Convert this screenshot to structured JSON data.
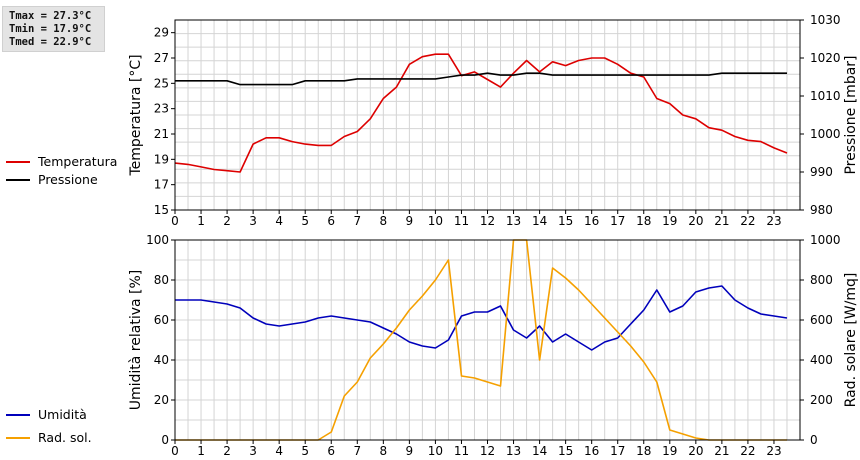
{
  "stats": {
    "tmax": "Tmax = 27.3°C",
    "tmin": "Tmin = 17.9°C",
    "tmed": "Tmed = 22.9°C"
  },
  "chart_data": [
    {
      "type": "line",
      "title": "",
      "xlabel": "",
      "ylabel": "Temperatura [°C]",
      "y2label": "Pressione [mbar]",
      "xlim": [
        0,
        24
      ],
      "ylim": [
        15,
        30
      ],
      "y2lim": [
        980,
        1030
      ],
      "x_ticks": [
        0,
        1,
        2,
        3,
        4,
        5,
        6,
        7,
        8,
        9,
        10,
        11,
        12,
        13,
        14,
        15,
        16,
        17,
        18,
        19,
        20,
        21,
        22,
        23
      ],
      "y_ticks": [
        15,
        17,
        19,
        21,
        23,
        25,
        27,
        29
      ],
      "y2_ticks": [
        980,
        990,
        1000,
        1010,
        1020,
        1030
      ],
      "grid": true,
      "legend": "left",
      "series": [
        {
          "name": "Temperatura",
          "axis": "left",
          "color": "#dd0000",
          "x": [
            0,
            0.5,
            1,
            1.5,
            2,
            2.5,
            3,
            3.5,
            4,
            4.5,
            5,
            5.5,
            6,
            6.5,
            7,
            7.5,
            8,
            8.5,
            9,
            9.5,
            10,
            10.5,
            11,
            11.5,
            12,
            12.5,
            13,
            13.5,
            14,
            14.5,
            15,
            15.5,
            16,
            16.5,
            17,
            17.5,
            18,
            18.5,
            19,
            19.5,
            20,
            20.5,
            21,
            21.5,
            22,
            22.5,
            23,
            23.5
          ],
          "y": [
            18.7,
            18.6,
            18.4,
            18.2,
            18.1,
            18.0,
            20.2,
            20.7,
            20.7,
            20.4,
            20.2,
            20.1,
            20.1,
            20.8,
            21.2,
            22.2,
            23.8,
            24.7,
            26.5,
            27.1,
            27.3,
            27.3,
            25.6,
            25.9,
            25.3,
            24.7,
            25.8,
            26.8,
            25.9,
            26.7,
            26.4,
            26.8,
            27.0,
            27.0,
            26.5,
            25.8,
            25.5,
            23.8,
            23.4,
            22.5,
            22.2,
            21.5,
            21.3,
            20.8,
            20.5,
            20.4,
            19.9,
            19.5
          ]
        },
        {
          "name": "Pressione",
          "axis": "right",
          "color": "#000000",
          "x": [
            0,
            0.5,
            1,
            1.5,
            2,
            2.5,
            3,
            3.5,
            4,
            4.5,
            5,
            5.5,
            6,
            6.5,
            7,
            7.5,
            8,
            8.5,
            9,
            9.5,
            10,
            10.5,
            11,
            11.5,
            12,
            12.5,
            13,
            13.5,
            14,
            14.5,
            15,
            15.5,
            16,
            16.5,
            17,
            17.5,
            18,
            18.5,
            19,
            19.5,
            20,
            20.5,
            21,
            21.5,
            22,
            22.5,
            23,
            23.5
          ],
          "y": [
            1014,
            1014,
            1014,
            1014,
            1014,
            1013,
            1013,
            1013,
            1013,
            1013,
            1014,
            1014,
            1014,
            1014,
            1014.5,
            1014.5,
            1014.5,
            1014.5,
            1014.5,
            1014.5,
            1014.5,
            1015,
            1015.5,
            1015.5,
            1016,
            1015.5,
            1015.5,
            1016,
            1016,
            1015.5,
            1015.5,
            1015.5,
            1015.5,
            1015.5,
            1015.5,
            1015.5,
            1015.5,
            1015.5,
            1015.5,
            1015.5,
            1015.5,
            1015.5,
            1016,
            1016,
            1016,
            1016,
            1016,
            1016
          ]
        }
      ]
    },
    {
      "type": "line",
      "title": "",
      "xlabel": "",
      "ylabel": "Umidità relativa [%]",
      "y2label": "Rad. solare [W/mq]",
      "xlim": [
        0,
        24
      ],
      "ylim": [
        0,
        100
      ],
      "y2lim": [
        0,
        1000
      ],
      "x_ticks": [
        0,
        1,
        2,
        3,
        4,
        5,
        6,
        7,
        8,
        9,
        10,
        11,
        12,
        13,
        14,
        15,
        16,
        17,
        18,
        19,
        20,
        21,
        22,
        23
      ],
      "y_ticks": [
        0,
        20,
        40,
        60,
        80,
        100
      ],
      "y2_ticks": [
        0,
        200,
        400,
        600,
        800,
        1000
      ],
      "grid": true,
      "legend": "left",
      "series": [
        {
          "name": "Umidità",
          "axis": "left",
          "color": "#0000bb",
          "x": [
            0,
            0.5,
            1,
            1.5,
            2,
            2.5,
            3,
            3.5,
            4,
            4.5,
            5,
            5.5,
            6,
            6.5,
            7,
            7.5,
            8,
            8.5,
            9,
            9.5,
            10,
            10.5,
            11,
            11.5,
            12,
            12.5,
            13,
            13.5,
            14,
            14.5,
            15,
            15.5,
            16,
            16.5,
            17,
            17.5,
            18,
            18.5,
            19,
            19.5,
            20,
            20.5,
            21,
            21.5,
            22,
            22.5,
            23,
            23.5
          ],
          "y": [
            70,
            70,
            70,
            69,
            68,
            66,
            61,
            58,
            57,
            58,
            59,
            61,
            62,
            61,
            60,
            59,
            56,
            53,
            49,
            47,
            46,
            50,
            62,
            64,
            64,
            67,
            55,
            51,
            57,
            49,
            53,
            49,
            45,
            49,
            51,
            58,
            65,
            75,
            64,
            67,
            74,
            76,
            77,
            70,
            66,
            63,
            62,
            61
          ]
        },
        {
          "name": "Rad. sol.",
          "axis": "right",
          "color": "#f5a000",
          "x": [
            0,
            0.5,
            1,
            1.5,
            2,
            2.5,
            3,
            3.5,
            4,
            4.5,
            5,
            5.5,
            6,
            6.5,
            7,
            7.5,
            8,
            8.5,
            9,
            9.5,
            10,
            10.5,
            11,
            11.5,
            12,
            12.5,
            13,
            13.5,
            14,
            14.5,
            15,
            15.5,
            16,
            16.5,
            17,
            17.5,
            18,
            18.5,
            19,
            19.5,
            20,
            20.5,
            21,
            21.5,
            22,
            22.5,
            23,
            23.5
          ],
          "y": [
            0,
            0,
            0,
            0,
            0,
            0,
            0,
            0,
            0,
            0,
            0,
            0,
            40,
            220,
            290,
            410,
            480,
            560,
            650,
            720,
            800,
            900,
            320,
            310,
            290,
            270,
            1000,
            1000,
            400,
            860,
            810,
            750,
            680,
            610,
            540,
            470,
            390,
            290,
            50,
            30,
            10,
            0,
            0,
            0,
            0,
            0,
            0,
            0
          ]
        }
      ]
    }
  ]
}
